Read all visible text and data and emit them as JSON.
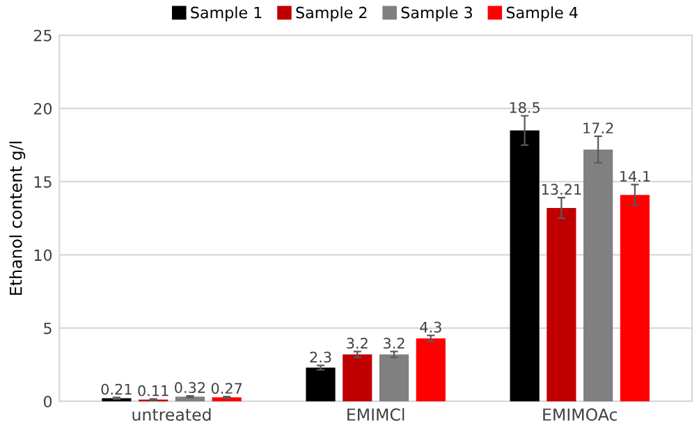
{
  "chart_data": {
    "type": "bar",
    "ylabel": "Ethanol content g/l",
    "categories": [
      "untreated",
      "EMIMCl",
      "EMIMOAc"
    ],
    "series": [
      {
        "name": "Sample 1",
        "color": "#000000",
        "values": [
          0.21,
          2.3,
          18.5
        ],
        "errors": [
          0.05,
          0.15,
          1.0
        ]
      },
      {
        "name": "Sample 2",
        "color": "#c00000",
        "values": [
          0.11,
          3.2,
          13.21
        ],
        "errors": [
          0.05,
          0.2,
          0.7
        ]
      },
      {
        "name": "Sample 3",
        "color": "#808080",
        "values": [
          0.32,
          3.2,
          17.2
        ],
        "errors": [
          0.05,
          0.2,
          0.9
        ]
      },
      {
        "name": "Sample 4",
        "color": "#ff0000",
        "values": [
          0.27,
          4.3,
          14.1
        ],
        "errors": [
          0.05,
          0.2,
          0.7
        ]
      }
    ],
    "ylim": [
      0,
      25
    ],
    "yticks": [
      0,
      5,
      10,
      15,
      20,
      25
    ],
    "grid": "y",
    "legend": "top",
    "data_labels": true
  }
}
